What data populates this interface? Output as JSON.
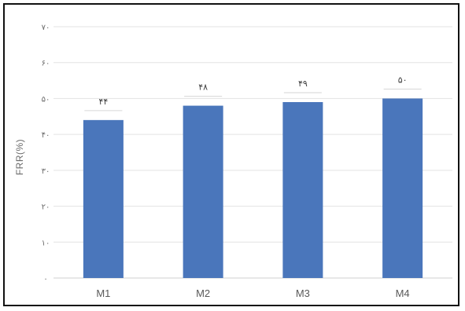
{
  "chart_data": {
    "type": "bar",
    "categories": [
      "M1",
      "M2",
      "M3",
      "M4"
    ],
    "values": [
      44,
      48,
      49,
      50
    ],
    "data_labels": [
      "۴۴",
      "۴۸",
      "۴۹",
      "۵۰"
    ],
    "ylabel": "FRR(%)",
    "xlabel": "",
    "ylim": [
      0,
      70
    ],
    "yticks": [
      0,
      10,
      20,
      30,
      40,
      50,
      60,
      70
    ],
    "ytick_labels": [
      "۰",
      "۱۰",
      "۲۰",
      "۳۰",
      "۴۰",
      "۵۰",
      "۶۰",
      "۷۰"
    ],
    "grid": true,
    "legend": "none",
    "bar_color": "#4a76bb"
  }
}
